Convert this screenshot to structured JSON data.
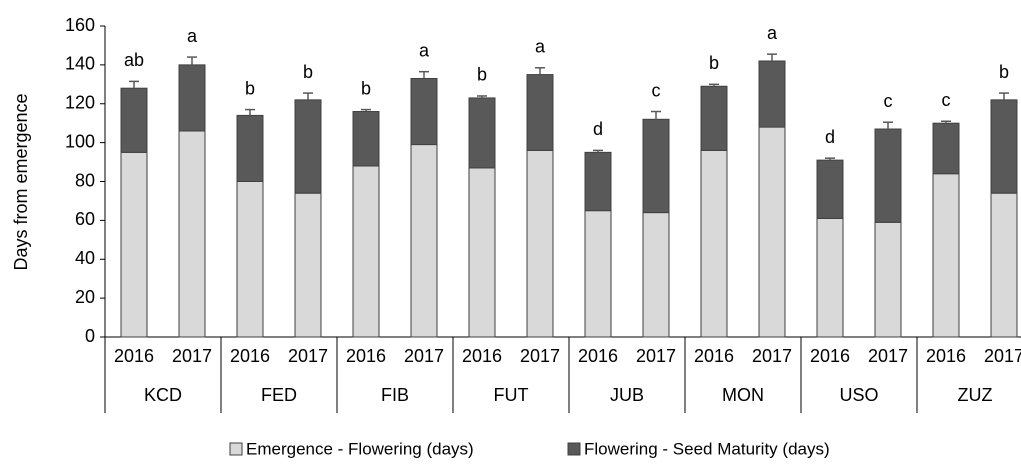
{
  "chart_data": {
    "type": "stacked-bar",
    "ylabel": "Days from emergence",
    "categories": [
      "2016",
      "2017",
      "2016",
      "2017",
      "2016",
      "2017",
      "2016",
      "2017",
      "2016",
      "2017",
      "2016",
      "2017",
      "2016",
      "2017",
      "2016",
      "2017"
    ],
    "groups": [
      "KCD",
      "FED",
      "FIB",
      "FUT",
      "JUB",
      "MON",
      "USO",
      "ZUZ"
    ],
    "series": [
      {
        "name": "Emergence - Flowering (days)",
        "color": "#d9d9d9",
        "values": [
          95,
          106,
          80,
          74,
          88,
          99,
          87,
          96,
          65,
          64,
          96,
          108,
          61,
          59,
          84,
          74
        ]
      },
      {
        "name": "Flowering - Seed Maturity (days)",
        "color": "#595959",
        "values": [
          33,
          34,
          34,
          48,
          28,
          34,
          36,
          39,
          30,
          48,
          33,
          34,
          30,
          48,
          26,
          48
        ],
        "errors": [
          3.5,
          4,
          3,
          3.5,
          1,
          3.5,
          1,
          3.5,
          1,
          4,
          1,
          3.5,
          1,
          3.5,
          1,
          3.5
        ]
      }
    ],
    "annotations": [
      "ab",
      "a",
      "b",
      "b",
      "b",
      "a",
      "b",
      "a",
      "d",
      "c",
      "b",
      "a",
      "d",
      "c",
      "c",
      "b"
    ],
    "ylim": [
      0,
      160
    ],
    "yticks": [
      0,
      20,
      40,
      60,
      80,
      100,
      120,
      140,
      160
    ],
    "legend": "bottom"
  }
}
